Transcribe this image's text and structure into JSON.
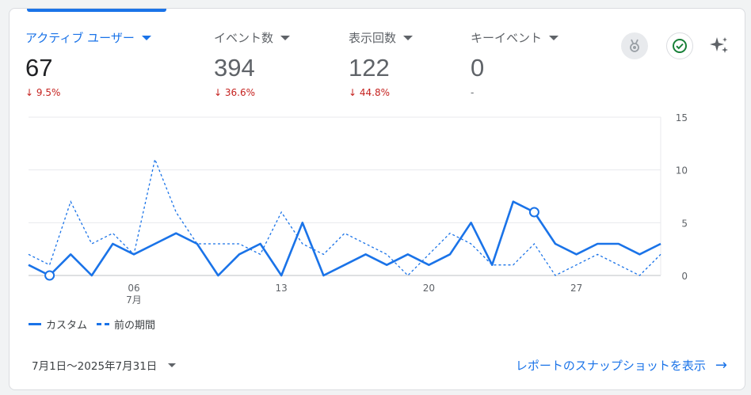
{
  "metrics": [
    {
      "label": "アクティブ ユーザー",
      "value": "67",
      "change": "9.5%",
      "arrow": "↓",
      "active": true
    },
    {
      "label": "イベント数",
      "value": "394",
      "change": "36.6%",
      "arrow": "↓",
      "active": false
    },
    {
      "label": "表示回数",
      "value": "122",
      "change": "44.8%",
      "arrow": "↓",
      "active": false
    },
    {
      "label": "キーイベント",
      "value": "0",
      "change": "-",
      "arrow": "",
      "active": false
    }
  ],
  "icons": {
    "badge": "medal-icon",
    "check": "check-circle-icon",
    "insights": "sparkle-icon"
  },
  "colors": {
    "accent": "#1a73e8",
    "negative": "#c5221f",
    "check": "#188038"
  },
  "chart_data": {
    "type": "line",
    "ylim": [
      0,
      15
    ],
    "yticks": [
      "0",
      "5",
      "10",
      "15"
    ],
    "x": [
      1,
      2,
      3,
      4,
      5,
      6,
      7,
      8,
      9,
      10,
      11,
      12,
      13,
      14,
      15,
      16,
      17,
      18,
      19,
      20,
      21,
      22,
      23,
      24,
      25,
      26,
      27,
      28,
      29,
      30,
      31
    ],
    "xtick_positions": [
      6,
      13,
      20,
      27
    ],
    "xtick_labels": [
      "06",
      "13",
      "20",
      "27"
    ],
    "month_label": "7月",
    "series": [
      {
        "name": "カスタム",
        "style": "solid",
        "values": [
          1,
          0,
          2,
          0,
          3,
          2,
          3,
          4,
          3,
          0,
          2,
          3,
          0,
          5,
          0,
          1,
          2,
          1,
          2,
          1,
          2,
          5,
          1,
          7,
          6,
          3,
          2,
          3,
          3,
          2,
          3
        ],
        "markers": [
          2,
          25
        ]
      },
      {
        "name": "前の期間",
        "style": "dashed",
        "values": [
          2,
          1,
          7,
          3,
          4,
          2,
          11,
          6,
          3,
          3,
          3,
          2,
          6,
          3,
          2,
          4,
          3,
          2,
          0,
          2,
          4,
          3,
          1,
          1,
          3,
          0,
          1,
          2,
          1,
          0,
          2
        ]
      }
    ]
  },
  "legend": {
    "series1": "カスタム",
    "series2": "前の期間"
  },
  "footer": {
    "date_range": "7月1日～2025年7月31日",
    "snapshot_link": "レポートのスナップショットを表示",
    "arrow": "→"
  }
}
